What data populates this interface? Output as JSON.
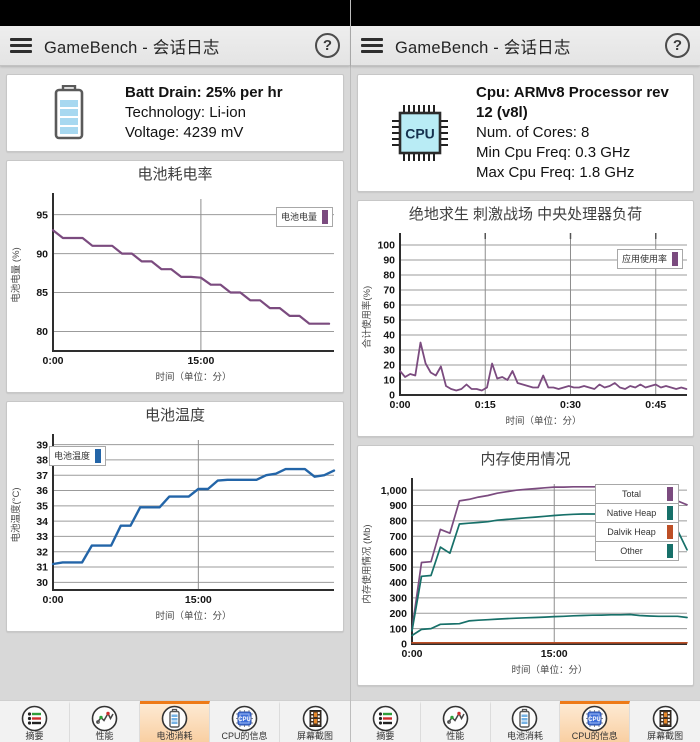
{
  "app_bar": {
    "title": "GameBench - 会话日志",
    "help_label": "?"
  },
  "left_panel": {
    "info_card": {
      "line1": "Batt Drain: 25% per hr",
      "line2": "Technology: Li-ion",
      "line3": "Voltage: 4239 mV"
    }
  },
  "right_panel": {
    "info_card": {
      "line1": "Cpu:  ARMv8 Processor rev 12 (v8l)",
      "line2": "Num. of Cores: 8",
      "line3": "Min Cpu Freq: 0.3 GHz",
      "line4": "Max Cpu Freq: 1.8 GHz"
    }
  },
  "toolbar": {
    "tabs": [
      {
        "name": "summary",
        "label": "摘要"
      },
      {
        "name": "performance",
        "label": "性能"
      },
      {
        "name": "battery",
        "label": "电池消耗"
      },
      {
        "name": "cpu-info",
        "label": "CPU的信息"
      },
      {
        "name": "screenshots",
        "label": "屏幕截图"
      }
    ],
    "left_selected_index": 2,
    "right_selected_index": 3
  },
  "colors": {
    "accent_orange": "#ee7a16",
    "purple": "#7b4b7f",
    "blue": "#2365a8",
    "teal": "#177069",
    "burnt_orange": "#bd4f26"
  },
  "chart_data": [
    {
      "id": "battery-drain",
      "type": "line",
      "title": "电池耗电率",
      "ylabel": "电池电量 (%)",
      "xlabel": "时间（单位：分）",
      "ylim": [
        77.5,
        97
      ],
      "yticks": [
        80,
        85,
        90,
        95
      ],
      "ytick_labels": [
        "80",
        "85",
        "90",
        "95"
      ],
      "xlim": [
        0,
        28.5
      ],
      "xticks": [
        {
          "v": 0,
          "label": "0:00"
        },
        {
          "v": 15,
          "label": "15:00"
        }
      ],
      "legend": {
        "entries": [
          {
            "label": "电池电量",
            "color": "#7b4b7f"
          }
        ]
      },
      "series": [
        {
          "name": "电池电量",
          "color": "#7b4b7f",
          "x_start": 0,
          "x_step": 1,
          "values": [
            93,
            92,
            92,
            92,
            91,
            91,
            91,
            90,
            90,
            89,
            89,
            88,
            88,
            87,
            87,
            86.9,
            86,
            86,
            85,
            85,
            84,
            84,
            83,
            83,
            82,
            82,
            81,
            81,
            81
          ]
        }
      ]
    },
    {
      "id": "battery-temp",
      "type": "line",
      "title": "电池温度",
      "ylabel": "电池温度(°C)",
      "xlabel": "时间（单位：分）",
      "ylim": [
        29.5,
        39.3
      ],
      "yticks": [
        30,
        31,
        32,
        33,
        34,
        35,
        36,
        37,
        38,
        39
      ],
      "ytick_labels": [
        "30",
        "31",
        "32",
        "33",
        "34",
        "35",
        "36",
        "37",
        "38",
        "39"
      ],
      "xlim": [
        0,
        29
      ],
      "xticks": [
        {
          "v": 0,
          "label": "0:00"
        },
        {
          "v": 15,
          "label": "15:00"
        }
      ],
      "legend": {
        "entries": [
          {
            "label": "电池温度",
            "color": "#2365a8"
          }
        ]
      },
      "series": [
        {
          "name": "电池温度",
          "color": "#2365a8",
          "x_start": 0,
          "x_step": 1,
          "values": [
            31.2,
            31.3,
            31.3,
            31.3,
            32.4,
            32.4,
            32.4,
            33.7,
            33.7,
            34.9,
            34.9,
            34.9,
            35.6,
            35.6,
            35.6,
            36.1,
            36.1,
            36.65,
            36.7,
            36.7,
            36.7,
            36.7,
            37.0,
            37.1,
            37.4,
            37.4,
            37.4,
            36.9,
            37.0,
            37.3
          ]
        }
      ]
    },
    {
      "id": "cpu-load",
      "type": "line",
      "title": "绝地求生 刺激战场 中央处理器负荷",
      "ylabel": "合计使用率(%)",
      "xlabel": "时间（单位：分）",
      "ylim": [
        0,
        104
      ],
      "yticks": [
        0,
        10,
        20,
        30,
        40,
        50,
        60,
        70,
        80,
        90,
        100
      ],
      "ytick_labels": [
        "0",
        "10",
        "20",
        "30",
        "40",
        "50",
        "60",
        "70",
        "80",
        "90",
        "100"
      ],
      "xlim": [
        0,
        50.5
      ],
      "xticks": [
        {
          "v": 0,
          "label": "0:00"
        },
        {
          "v": 15,
          "label": "0:15"
        },
        {
          "v": 30,
          "label": "0:30"
        },
        {
          "v": 45,
          "label": "0:45"
        }
      ],
      "legend": {
        "entries": [
          {
            "label": "应用使用率",
            "color": "#7b4b7f"
          }
        ]
      },
      "series": [
        {
          "name": "应用使用率",
          "color": "#7b4b7f",
          "x_start": 0,
          "x_step": 0.9,
          "values": [
            16,
            12,
            14,
            13,
            35,
            21,
            15,
            13,
            19,
            6,
            4,
            3,
            4,
            7,
            4,
            4,
            3,
            5,
            21,
            11,
            12,
            10,
            16,
            8,
            7,
            6,
            5,
            5,
            13,
            5,
            5,
            4,
            5,
            6,
            5,
            5,
            6,
            5,
            4,
            7,
            5,
            6,
            8,
            5,
            4,
            6,
            5,
            7,
            5,
            6,
            7,
            5,
            6,
            5,
            4,
            5,
            4
          ]
        }
      ]
    },
    {
      "id": "memory-usage",
      "type": "line",
      "title": "内存使用情况",
      "ylabel": "内存使用情况 (Mb)",
      "xlabel": "时间（单位：分）",
      "ylim": [
        0,
        1040
      ],
      "yticks": [
        0,
        100,
        200,
        300,
        400,
        500,
        600,
        700,
        800,
        900,
        1000
      ],
      "ytick_labels": [
        "0",
        "100",
        "200",
        "300",
        "400",
        "500",
        "600",
        "700",
        "800",
        "900",
        "1,000"
      ],
      "xlim": [
        0,
        29
      ],
      "xticks": [
        {
          "v": 0,
          "label": "0:00"
        },
        {
          "v": 15,
          "label": "15:00"
        }
      ],
      "legend": {
        "entries": [
          {
            "label": "Total",
            "color": "#7b4b7f"
          },
          {
            "label": "Native Heap",
            "color": "#177069"
          },
          {
            "label": "Dalvik Heap",
            "color": "#bd4f26"
          },
          {
            "label": "Other",
            "color": "#177069"
          }
        ]
      },
      "series": [
        {
          "name": "Total",
          "color": "#7b4b7f",
          "x_start": 0,
          "x_step": 1,
          "values": [
            95,
            530,
            535,
            745,
            720,
            930,
            940,
            955,
            965,
            980,
            990,
            1000,
            1005,
            1010,
            1015,
            1020,
            1020,
            1022,
            1022,
            1022,
            1022,
            1022,
            1020,
            955,
            940,
            950,
            945,
            935,
            930,
            905
          ]
        },
        {
          "name": "Native Heap",
          "color": "#177069",
          "x_start": 0,
          "x_step": 1,
          "values": [
            85,
            440,
            445,
            630,
            590,
            780,
            785,
            790,
            795,
            805,
            810,
            815,
            820,
            825,
            830,
            835,
            840,
            843,
            845,
            845,
            845,
            845,
            845,
            790,
            765,
            780,
            770,
            745,
            740,
            612
          ]
        },
        {
          "name": "Other",
          "color": "#177069",
          "x_start": 0,
          "x_step": 1,
          "values": [
            55,
            95,
            100,
            128,
            130,
            132,
            150,
            155,
            158,
            162,
            165,
            168,
            170,
            172,
            175,
            178,
            180,
            183,
            185,
            187,
            188,
            190,
            190,
            192,
            185,
            182,
            180,
            180,
            180,
            172
          ]
        },
        {
          "name": "Dalvik Heap",
          "color": "#bd4f26",
          "x_start": 0,
          "x_step": 1,
          "values": [
            8,
            8,
            8,
            8,
            8,
            8,
            8,
            8,
            8,
            8,
            8,
            8,
            8,
            8,
            8,
            8,
            8,
            8,
            8,
            8,
            8,
            8,
            8,
            8,
            8,
            8,
            8,
            8,
            8,
            8
          ]
        }
      ]
    }
  ]
}
